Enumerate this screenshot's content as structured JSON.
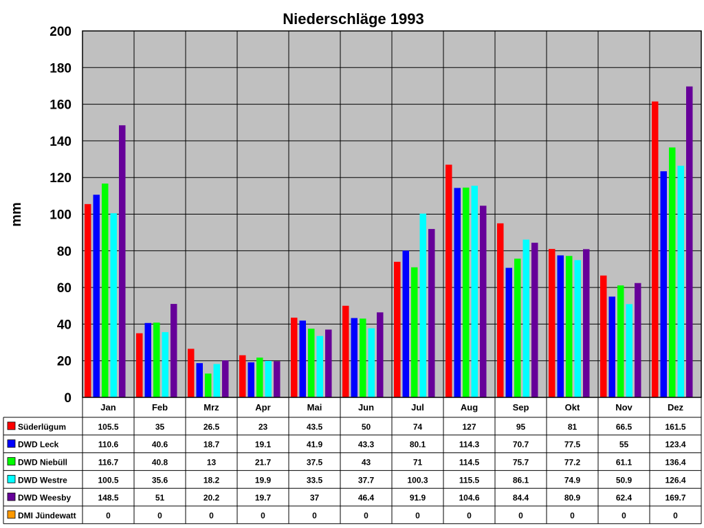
{
  "chart_data": {
    "type": "bar",
    "title": "Niederschläge 1993",
    "xlabel": "",
    "ylabel": "mm",
    "ylim": [
      0,
      200
    ],
    "yticks": [
      0,
      20,
      40,
      60,
      80,
      100,
      120,
      140,
      160,
      180,
      200
    ],
    "grid": true,
    "legend": "data-table-left",
    "categories": [
      "Jan",
      "Feb",
      "Mrz",
      "Apr",
      "Mai",
      "Jun",
      "Jul",
      "Aug",
      "Sep",
      "Okt",
      "Nov",
      "Dez"
    ],
    "series": [
      {
        "name": "Süderlügum",
        "color": "#ff0000",
        "values": [
          105.5,
          35,
          26.5,
          23,
          43.5,
          50,
          74,
          127,
          95,
          81,
          66.5,
          161.5
        ]
      },
      {
        "name": "DWD Leck",
        "color": "#0000ff",
        "values": [
          110.6,
          40.6,
          18.7,
          19.1,
          41.9,
          43.3,
          80.1,
          114.3,
          70.7,
          77.5,
          55,
          123.4
        ]
      },
      {
        "name": "DWD Niebüll",
        "color": "#00ff00",
        "values": [
          116.7,
          40.8,
          13,
          21.7,
          37.5,
          43,
          71,
          114.5,
          75.7,
          77.2,
          61.1,
          136.4
        ]
      },
      {
        "name": "DWD Westre",
        "color": "#00ffff",
        "values": [
          100.5,
          35.6,
          18.2,
          19.9,
          33.5,
          37.7,
          100.3,
          115.5,
          86.1,
          74.9,
          50.9,
          126.4
        ]
      },
      {
        "name": "DWD Weesby",
        "color": "#660099",
        "values": [
          148.5,
          51,
          20.2,
          19.7,
          37,
          46.4,
          91.9,
          104.6,
          84.4,
          80.9,
          62.4,
          169.7
        ]
      },
      {
        "name": "DMI Jündewatt",
        "color": "#ff9900",
        "values": [
          0,
          0,
          0,
          0,
          0,
          0,
          0,
          0,
          0,
          0,
          0,
          0
        ]
      }
    ],
    "plot_background": "#c0c0c0"
  }
}
